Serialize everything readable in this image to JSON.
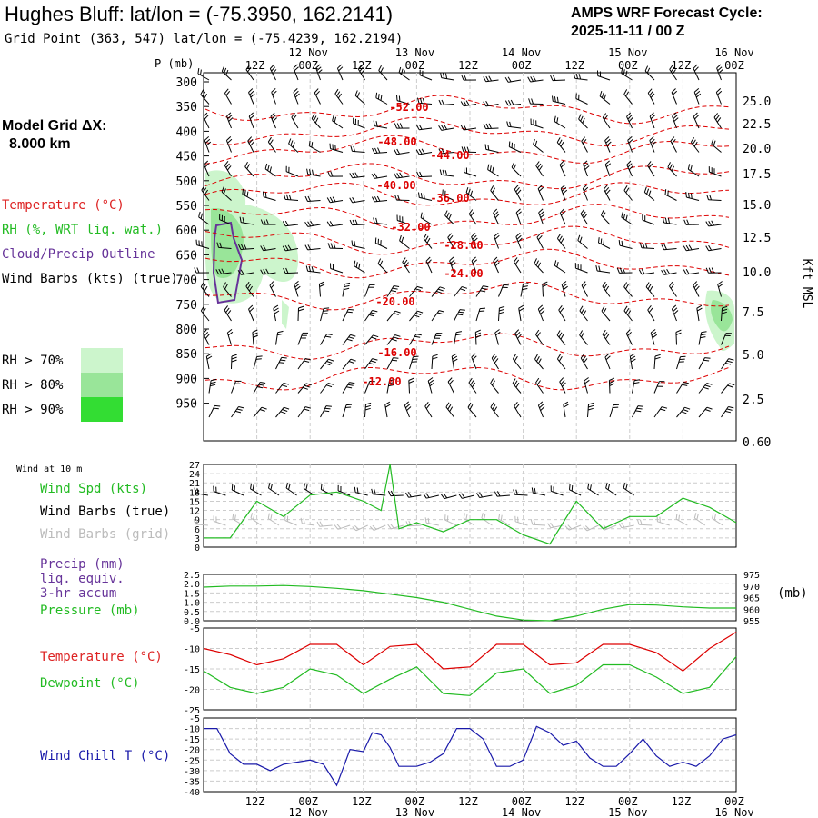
{
  "header": {
    "title": "Hughes Bluff:  lat/lon = (-75.3950, 162.2141)",
    "grid_point": "Grid Point (363, 547) lat/lon = (-75.4239, 162.2194)",
    "cycle_label": "AMPS WRF Forecast Cycle:",
    "cycle_value": "2025-11-11 / 00  Z"
  },
  "model": {
    "label": "Model Grid ΔX:",
    "value": "8.000 km"
  },
  "legend": {
    "temperature": "Temperature (°C)",
    "rh": "RH (%, WRT liq. wat.)",
    "cloud": "Cloud/Precip Outline",
    "barbs": "Wind Barbs (kts) (true)",
    "rh70": "RH > 70%",
    "rh80": "RH > 80%",
    "rh90": "RH > 90%"
  },
  "colors": {
    "temp": "#dd0000",
    "rh": "#22bb22",
    "cloud": "#663399",
    "wind": "#000000",
    "grid_wind": "#bbbbbb",
    "wchill": "#1a1aaa",
    "rh70": "#ccf5cc",
    "rh80": "#99e599",
    "rh90": "#33dd33"
  },
  "time_axis": {
    "hour_labels": [
      "12Z",
      "00Z",
      "12Z",
      "00Z",
      "12Z",
      "00Z",
      "12Z",
      "00Z",
      "12Z",
      "00Z"
    ],
    "date_labels": [
      "12 Nov",
      "13 Nov",
      "14 Nov",
      "15 Nov",
      "16 Nov"
    ]
  },
  "chart_data": [
    {
      "id": "sounding",
      "type": "heatmap",
      "title": "Time-height cross section",
      "ylabel": "P (mb)",
      "y2label": "Kft MSL",
      "pressure_ticks": [
        "300",
        "350",
        "400",
        "450",
        "500",
        "550",
        "600",
        "650",
        "700",
        "750",
        "800",
        "850",
        "900",
        "950"
      ],
      "kft_ticks": [
        "25.0",
        "22.5",
        "20.0",
        "17.5",
        "15.0",
        "12.5",
        "10.0",
        "7.5",
        "5.0",
        "2.5",
        "0.60"
      ],
      "isotherm_labels": [
        "-52.00",
        "-48.00",
        "-44.00",
        "-40.00",
        "-36.00",
        "-32.00",
        "-28.00",
        "-24.00",
        "-20.00",
        "-16.00",
        "-12.00"
      ],
      "forecast_hours": [
        0,
        120
      ]
    },
    {
      "id": "wind10m",
      "type": "line",
      "header": "Wind at 10 m",
      "labels": [
        "Wind Spd (kts)",
        "Wind Barbs (true)",
        "Wind Barbs (grid)"
      ],
      "ylim": [
        0,
        27
      ],
      "yticks": [
        "27",
        "24",
        "21",
        "18",
        "15",
        "12",
        "9",
        "6",
        "3",
        "0"
      ],
      "x": [
        0,
        6,
        12,
        18,
        24,
        30,
        36,
        40,
        42,
        44,
        48,
        54,
        60,
        66,
        72,
        78,
        84,
        90,
        96,
        102,
        108,
        114,
        120
      ],
      "values": [
        3,
        3,
        15,
        10,
        17,
        18,
        15,
        12,
        27,
        6,
        8,
        5,
        9,
        9,
        4,
        1,
        15,
        6,
        10,
        10,
        16,
        13,
        8
      ]
    },
    {
      "id": "precip",
      "type": "line",
      "labels": [
        "Precip (mm)",
        "liq. equiv.",
        "3-hr accum",
        "Pressure (mb)"
      ],
      "y2unit": "(mb)",
      "yticks": [
        "2.5",
        "2.0",
        "1.5",
        "1.0",
        "0.5",
        "0.0"
      ],
      "y2ticks": [
        "975",
        "970",
        "965",
        "960",
        "955"
      ],
      "pressure_ylim": [
        955,
        975
      ],
      "x": [
        0,
        6,
        12,
        18,
        24,
        30,
        36,
        42,
        48,
        54,
        60,
        66,
        72,
        78,
        84,
        90,
        96,
        102,
        108,
        114,
        120
      ],
      "pressure": [
        969.5,
        970,
        970,
        970.2,
        969.8,
        969,
        968,
        966.5,
        965,
        963,
        960,
        957,
        955.3,
        955,
        957,
        960,
        962,
        961.8,
        961,
        960.5,
        960.5
      ],
      "precip": [
        0,
        0,
        0,
        0,
        0,
        0,
        0,
        0,
        0,
        0,
        0,
        0,
        0,
        0,
        0,
        0,
        0,
        0,
        0,
        0,
        0
      ]
    },
    {
      "id": "temperature",
      "type": "line",
      "labels": [
        "Temperature (°C)",
        "Dewpoint (°C)"
      ],
      "ylim": [
        -25,
        -5
      ],
      "yticks": [
        "-5",
        "-10",
        "-15",
        "-20",
        "-25"
      ],
      "x": [
        0,
        6,
        12,
        18,
        24,
        30,
        36,
        42,
        48,
        54,
        60,
        66,
        72,
        78,
        84,
        90,
        96,
        102,
        108,
        114,
        120
      ],
      "series": [
        {
          "name": "Temperature",
          "values": [
            -10,
            -11.5,
            -14,
            -12.5,
            -9,
            -9,
            -14,
            -9.5,
            -9,
            -15,
            -14.5,
            -9,
            -9,
            -14,
            -13.5,
            -9,
            -9,
            -11,
            -15.5,
            -10,
            -6
          ]
        },
        {
          "name": "Dewpoint",
          "values": [
            -15.5,
            -19.5,
            -21,
            -19.5,
            -15,
            -16.5,
            -21,
            -17.5,
            -14.5,
            -21,
            -21.5,
            -16,
            -15,
            -21,
            -19,
            -14,
            -14,
            -17,
            -21,
            -19.5,
            -12
          ]
        }
      ]
    },
    {
      "id": "windchill",
      "type": "line",
      "labels": [
        "Wind Chill T (°C)"
      ],
      "ylim": [
        -40,
        -5
      ],
      "yticks": [
        "-5",
        "-10",
        "-15",
        "-20",
        "-25",
        "-30",
        "-35",
        "-40"
      ],
      "x": [
        0,
        3,
        6,
        9,
        12,
        15,
        18,
        21,
        24,
        27,
        30,
        33,
        36,
        38,
        40,
        42,
        44,
        48,
        51,
        54,
        57,
        60,
        63,
        66,
        69,
        72,
        75,
        78,
        81,
        84,
        87,
        90,
        93,
        96,
        99,
        102,
        105,
        108,
        111,
        114,
        117,
        120
      ],
      "values": [
        -10,
        -10,
        -22,
        -27,
        -27,
        -30,
        -27,
        -26,
        -25,
        -27,
        -37,
        -20,
        -21,
        -12,
        -13,
        -19,
        -28,
        -28,
        -26,
        -22,
        -10,
        -10,
        -15,
        -28,
        -28,
        -25,
        -9,
        -12,
        -18,
        -16,
        -24,
        -28,
        -28,
        -22,
        -15,
        -23,
        -28,
        -26,
        -28,
        -23,
        -15,
        -13
      ]
    }
  ]
}
